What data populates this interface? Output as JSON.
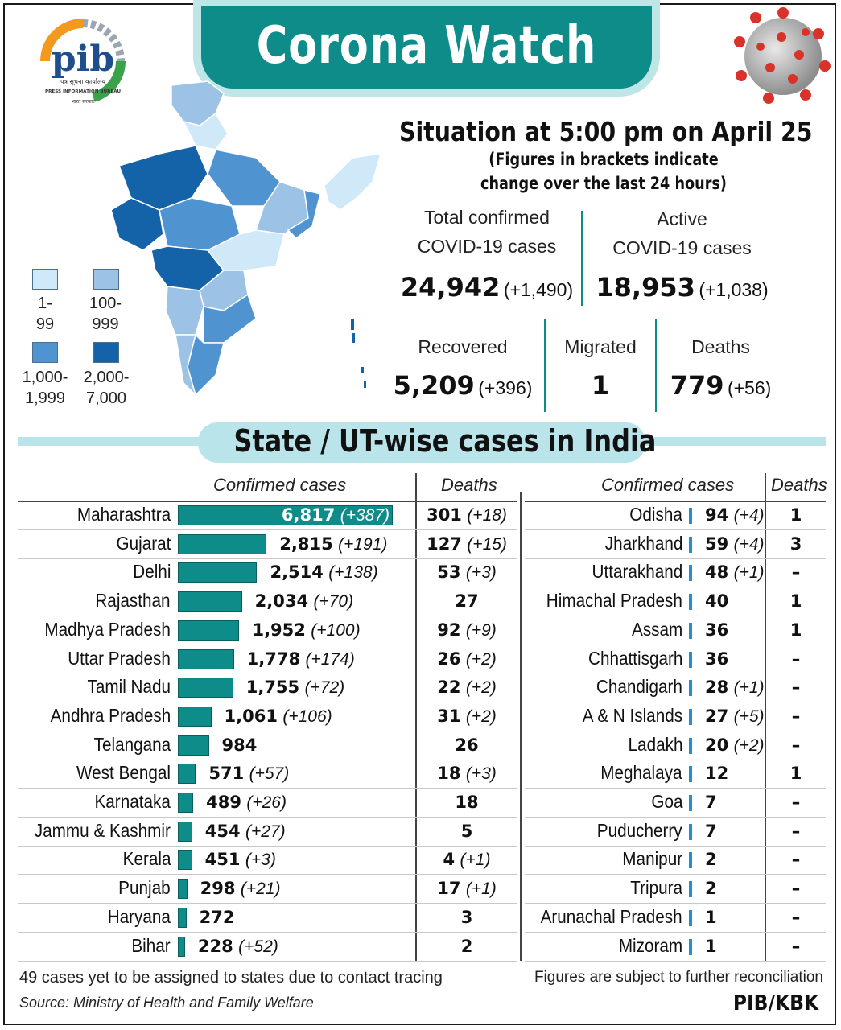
{
  "header": {
    "title": "Corona Watch"
  },
  "logo": {
    "text": "pib",
    "caption_hindi": "पत्र सूचना कार्यालय",
    "caption": "PRESS INFORMATION BUREAU",
    "caption_bottom": "भारत सरकार"
  },
  "situation": {
    "title": "Situation at 5:00 pm on April 25",
    "sub1": "(Figures in brackets indicate",
    "sub2": "change over the last 24 hours)"
  },
  "stats": {
    "total": {
      "label1": "Total confirmed",
      "label2": "COVID-19 cases",
      "value": "24,942",
      "change": "(+1,490)"
    },
    "active": {
      "label1": "Active",
      "label2": "COVID-19 cases",
      "value": "18,953",
      "change": "(+1,038)"
    },
    "recovered": {
      "label": "Recovered",
      "value": "5,209",
      "change": "(+396)"
    },
    "migrated": {
      "label": "Migrated",
      "value": "1"
    },
    "deaths": {
      "label": "Deaths",
      "value": "779",
      "change": "(+56)"
    }
  },
  "legend": [
    {
      "line1": "1-",
      "line2": "99",
      "color": "#cfe9f8"
    },
    {
      "line1": "100-",
      "line2": "999",
      "color": "#9cc3e6"
    },
    {
      "line1": "1,000-",
      "line2": "1,999",
      "color": "#4f94d0"
    },
    {
      "line1": "2,000-",
      "line2": "7,000",
      "color": "#1462a8"
    }
  ],
  "section": {
    "title": "State / UT-wise cases in India"
  },
  "table_headers": {
    "confirmed": "Confirmed cases",
    "deaths": "Deaths"
  },
  "chart_data": {
    "type": "bar",
    "title": "State / UT-wise cases in India",
    "xlabel": "Confirmed cases",
    "ylabel": "",
    "xlim": [
      0,
      6817
    ],
    "categories": [
      "Maharashtra",
      "Gujarat",
      "Delhi",
      "Rajasthan",
      "Madhya Pradesh",
      "Uttar Pradesh",
      "Tamil Nadu",
      "Andhra Pradesh",
      "Telangana",
      "West Bengal",
      "Karnataka",
      "Jammu & Kashmir",
      "Kerala",
      "Punjab",
      "Haryana",
      "Bihar",
      "Odisha",
      "Jharkhand",
      "Uttarakhand",
      "Himachal Pradesh",
      "Assam",
      "Chhattisgarh",
      "Chandigarh",
      "A & N Islands",
      "Ladakh",
      "Meghalaya",
      "Goa",
      "Puducherry",
      "Manipur",
      "Tripura",
      "Arunachal Pradesh",
      "Mizoram"
    ],
    "series": [
      {
        "name": "Confirmed cases",
        "values": [
          6817,
          2815,
          2514,
          2034,
          1952,
          1778,
          1755,
          1061,
          984,
          571,
          489,
          454,
          451,
          298,
          272,
          228,
          94,
          59,
          48,
          40,
          36,
          36,
          28,
          27,
          20,
          12,
          7,
          7,
          2,
          2,
          1,
          1
        ]
      },
      {
        "name": "Deaths",
        "values": [
          301,
          127,
          53,
          27,
          92,
          26,
          22,
          31,
          26,
          18,
          18,
          5,
          4,
          17,
          3,
          2,
          1,
          3,
          0,
          1,
          1,
          0,
          0,
          0,
          0,
          1,
          0,
          0,
          0,
          0,
          0,
          0
        ]
      }
    ],
    "rows": [
      {
        "state": "Maharashtra",
        "cases": "6,817",
        "cases_change": "(+387)",
        "deaths": "301",
        "deaths_change": "(+18)"
      },
      {
        "state": "Gujarat",
        "cases": "2,815",
        "cases_change": "(+191)",
        "deaths": "127",
        "deaths_change": "(+15)"
      },
      {
        "state": "Delhi",
        "cases": "2,514",
        "cases_change": "(+138)",
        "deaths": "53",
        "deaths_change": "(+3)"
      },
      {
        "state": "Rajasthan",
        "cases": "2,034",
        "cases_change": "(+70)",
        "deaths": "27",
        "deaths_change": ""
      },
      {
        "state": "Madhya Pradesh",
        "cases": "1,952",
        "cases_change": "(+100)",
        "deaths": "92",
        "deaths_change": "(+9)"
      },
      {
        "state": "Uttar Pradesh",
        "cases": "1,778",
        "cases_change": "(+174)",
        "deaths": "26",
        "deaths_change": "(+2)"
      },
      {
        "state": "Tamil Nadu",
        "cases": "1,755",
        "cases_change": "(+72)",
        "deaths": "22",
        "deaths_change": "(+2)"
      },
      {
        "state": "Andhra Pradesh",
        "cases": "1,061",
        "cases_change": "(+106)",
        "deaths": "31",
        "deaths_change": "(+2)"
      },
      {
        "state": "Telangana",
        "cases": "984",
        "cases_change": "",
        "deaths": "26",
        "deaths_change": ""
      },
      {
        "state": "West Bengal",
        "cases": "571",
        "cases_change": "(+57)",
        "deaths": "18",
        "deaths_change": "(+3)"
      },
      {
        "state": "Karnataka",
        "cases": "489",
        "cases_change": "(+26)",
        "deaths": "18",
        "deaths_change": ""
      },
      {
        "state": "Jammu & Kashmir",
        "cases": "454",
        "cases_change": "(+27)",
        "deaths": "5",
        "deaths_change": ""
      },
      {
        "state": "Kerala",
        "cases": "451",
        "cases_change": "(+3)",
        "deaths": "4",
        "deaths_change": "(+1)"
      },
      {
        "state": "Punjab",
        "cases": "298",
        "cases_change": "(+21)",
        "deaths": "17",
        "deaths_change": "(+1)"
      },
      {
        "state": "Haryana",
        "cases": "272",
        "cases_change": "",
        "deaths": "3",
        "deaths_change": ""
      },
      {
        "state": "Bihar",
        "cases": "228",
        "cases_change": "(+52)",
        "deaths": "2",
        "deaths_change": ""
      },
      {
        "state": "Odisha",
        "cases": "94",
        "cases_change": "(+4)",
        "deaths": "1",
        "deaths_change": ""
      },
      {
        "state": "Jharkhand",
        "cases": "59",
        "cases_change": "(+4)",
        "deaths": "3",
        "deaths_change": ""
      },
      {
        "state": "Uttarakhand",
        "cases": "48",
        "cases_change": "(+1)",
        "deaths": "–",
        "deaths_change": ""
      },
      {
        "state": "Himachal Pradesh",
        "cases": "40",
        "cases_change": "",
        "deaths": "1",
        "deaths_change": ""
      },
      {
        "state": "Assam",
        "cases": "36",
        "cases_change": "",
        "deaths": "1",
        "deaths_change": ""
      },
      {
        "state": "Chhattisgarh",
        "cases": "36",
        "cases_change": "",
        "deaths": "–",
        "deaths_change": ""
      },
      {
        "state": "Chandigarh",
        "cases": "28",
        "cases_change": "(+1)",
        "deaths": "–",
        "deaths_change": ""
      },
      {
        "state": "A & N Islands",
        "cases": "27",
        "cases_change": "(+5)",
        "deaths": "–",
        "deaths_change": ""
      },
      {
        "state": "Ladakh",
        "cases": "20",
        "cases_change": "(+2)",
        "deaths": "–",
        "deaths_change": ""
      },
      {
        "state": "Meghalaya",
        "cases": "12",
        "cases_change": "",
        "deaths": "1",
        "deaths_change": ""
      },
      {
        "state": "Goa",
        "cases": "7",
        "cases_change": "",
        "deaths": "–",
        "deaths_change": ""
      },
      {
        "state": "Puducherry",
        "cases": "7",
        "cases_change": "",
        "deaths": "–",
        "deaths_change": ""
      },
      {
        "state": "Manipur",
        "cases": "2",
        "cases_change": "",
        "deaths": "–",
        "deaths_change": ""
      },
      {
        "state": "Tripura",
        "cases": "2",
        "cases_change": "",
        "deaths": "–",
        "deaths_change": ""
      },
      {
        "state": "Arunachal Pradesh",
        "cases": "1",
        "cases_change": "",
        "deaths": "–",
        "deaths_change": ""
      },
      {
        "state": "Mizoram",
        "cases": "1",
        "cases_change": "",
        "deaths": "–",
        "deaths_change": ""
      }
    ]
  },
  "footer": {
    "note": "49 cases yet to be assigned to states due to contact tracing",
    "source": "Source: Ministry of Health and Family Welfare",
    "reconcile": "Figures are subject to further reconciliation",
    "credit": "PIB/KBK"
  },
  "colors": {
    "accent": "#0e8c8a",
    "band": "#b9e4ea",
    "minibar": "#1f8fd0"
  }
}
